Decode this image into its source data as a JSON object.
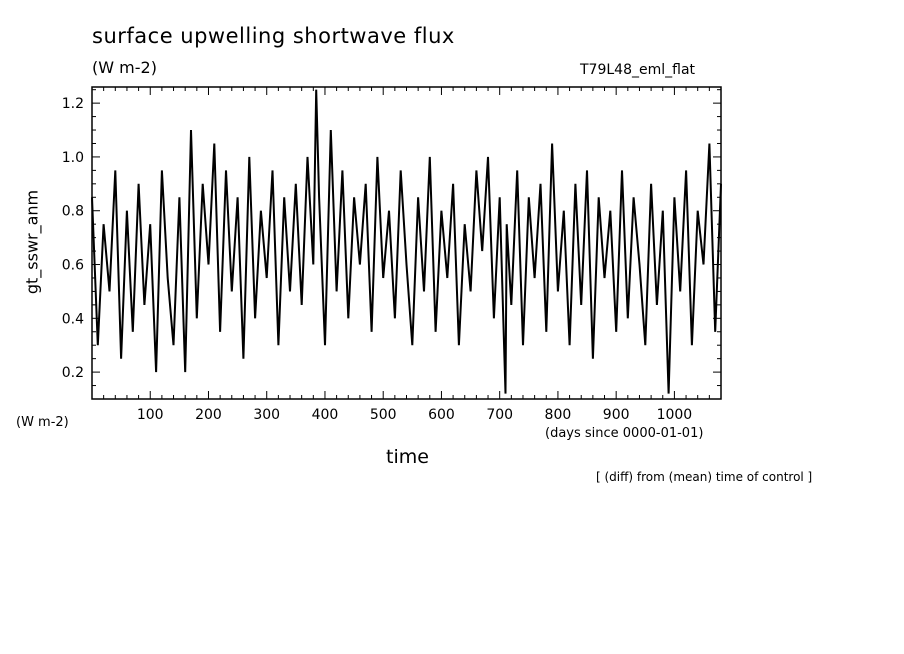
{
  "chart_data": {
    "type": "line",
    "title": "surface upwelling shortwave flux",
    "units": "(W m-2)",
    "run_name": "T79L48_eml_flat",
    "ylabel": "gt_sswr_anm",
    "y_units": "(W m-2)",
    "xlabel": "time",
    "x_units": "(days since 0000-01-01)",
    "note": "[ (diff) from (mean) time of control ]",
    "xlim": [
      0,
      1080
    ],
    "ylim": [
      0.1,
      1.26
    ],
    "x_ticks": [
      100,
      200,
      300,
      400,
      500,
      600,
      700,
      800,
      900,
      1000
    ],
    "x_tick_labels": [
      "100",
      "200",
      "300",
      "400",
      "500",
      "600",
      "700",
      "800",
      "900",
      "1000"
    ],
    "y_ticks": [
      0.2,
      0.4,
      0.6,
      0.8,
      1.0,
      1.2
    ],
    "y_tick_labels": [
      "0.2",
      "0.4",
      "0.6",
      "0.8",
      "1.0",
      "1.2"
    ],
    "grid": false,
    "line_color": "#000000",
    "series": [
      {
        "x": [
          0,
          10,
          20,
          30,
          40,
          50,
          60,
          70,
          80,
          90,
          100,
          110,
          120,
          130,
          140,
          150,
          160,
          170,
          180,
          190,
          200,
          210,
          220,
          230,
          240,
          250,
          260,
          270,
          280,
          290,
          300,
          310,
          320,
          330,
          340,
          350,
          360,
          370,
          380,
          385,
          390,
          400,
          410,
          420,
          430,
          440,
          450,
          460,
          470,
          480,
          490,
          500,
          510,
          520,
          530,
          540,
          550,
          560,
          570,
          580,
          590,
          600,
          610,
          620,
          630,
          640,
          650,
          660,
          670,
          680,
          690,
          700,
          710,
          712,
          720,
          730,
          740,
          750,
          760,
          770,
          780,
          790,
          800,
          810,
          820,
          830,
          840,
          850,
          860,
          870,
          880,
          890,
          900,
          910,
          920,
          930,
          940,
          950,
          960,
          970,
          980,
          990,
          1000,
          1010,
          1020,
          1030,
          1040,
          1050,
          1060,
          1070,
          1080
        ],
        "y": [
          0.85,
          0.3,
          0.75,
          0.5,
          0.95,
          0.25,
          0.8,
          0.35,
          0.9,
          0.45,
          0.75,
          0.2,
          0.95,
          0.55,
          0.3,
          0.85,
          0.2,
          1.1,
          0.4,
          0.9,
          0.6,
          1.05,
          0.35,
          0.95,
          0.5,
          0.85,
          0.25,
          1.0,
          0.4,
          0.8,
          0.55,
          0.95,
          0.3,
          0.85,
          0.5,
          0.9,
          0.45,
          1.0,
          0.6,
          1.25,
          0.85,
          0.3,
          1.1,
          0.5,
          0.95,
          0.4,
          0.85,
          0.6,
          0.9,
          0.35,
          1.0,
          0.55,
          0.8,
          0.4,
          0.95,
          0.6,
          0.3,
          0.85,
          0.5,
          1.0,
          0.35,
          0.8,
          0.55,
          0.9,
          0.3,
          0.75,
          0.5,
          0.95,
          0.65,
          1.0,
          0.4,
          0.85,
          0.12,
          0.75,
          0.45,
          0.95,
          0.3,
          0.85,
          0.55,
          0.9,
          0.35,
          1.05,
          0.5,
          0.8,
          0.3,
          0.9,
          0.45,
          0.95,
          0.25,
          0.85,
          0.55,
          0.8,
          0.35,
          0.95,
          0.4,
          0.85,
          0.6,
          0.3,
          0.9,
          0.45,
          0.8,
          0.12,
          0.85,
          0.5,
          0.95,
          0.3,
          0.8,
          0.6,
          1.05,
          0.35,
          0.9
        ]
      }
    ]
  }
}
